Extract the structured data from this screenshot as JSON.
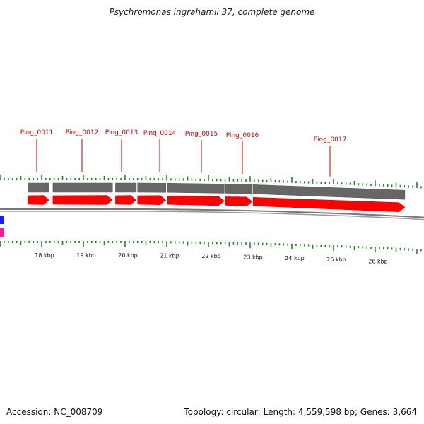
{
  "title": "Psychromonas ingrahamii 37, complete genome",
  "accession": "Accession: NC_008709",
  "summary": "Topology: circular; Length: 4,559,598 bp; Genes: 3,664",
  "colors": {
    "gene_arrow": "#ff0000",
    "gene_bar": "#666666",
    "backbone": "#777777",
    "tick": "#1a8a1a",
    "gene_label": "#cc0000",
    "left_blue": "#1a1aff",
    "left_pink": "#ff1aa0"
  },
  "genes": [
    {
      "name": "Ping_0011",
      "start_kbp": 17.67,
      "end_kbp": 18.18
    },
    {
      "name": "Ping_0012",
      "start_kbp": 18.27,
      "end_kbp": 19.7
    },
    {
      "name": "Ping_0013",
      "start_kbp": 19.77,
      "end_kbp": 20.27
    },
    {
      "name": "Ping_0014",
      "start_kbp": 20.3,
      "end_kbp": 20.98
    },
    {
      "name": "Ping_0015",
      "start_kbp": 21.02,
      "end_kbp": 22.38
    },
    {
      "name": "Ping_0016",
      "start_kbp": 22.4,
      "end_kbp": 23.05
    },
    {
      "name": "Ping_0017",
      "start_kbp": 23.07,
      "end_kbp": 26.71
    }
  ],
  "kbp_ticks": [
    "18 kbp",
    "19 kbp",
    "20 kbp",
    "21 kbp",
    "22 kbp",
    "23 kbp",
    "24 kbp",
    "25 kbp",
    "26 kbp"
  ],
  "kbp_values": [
    18,
    19,
    20,
    21,
    22,
    23,
    24,
    25,
    26
  ]
}
